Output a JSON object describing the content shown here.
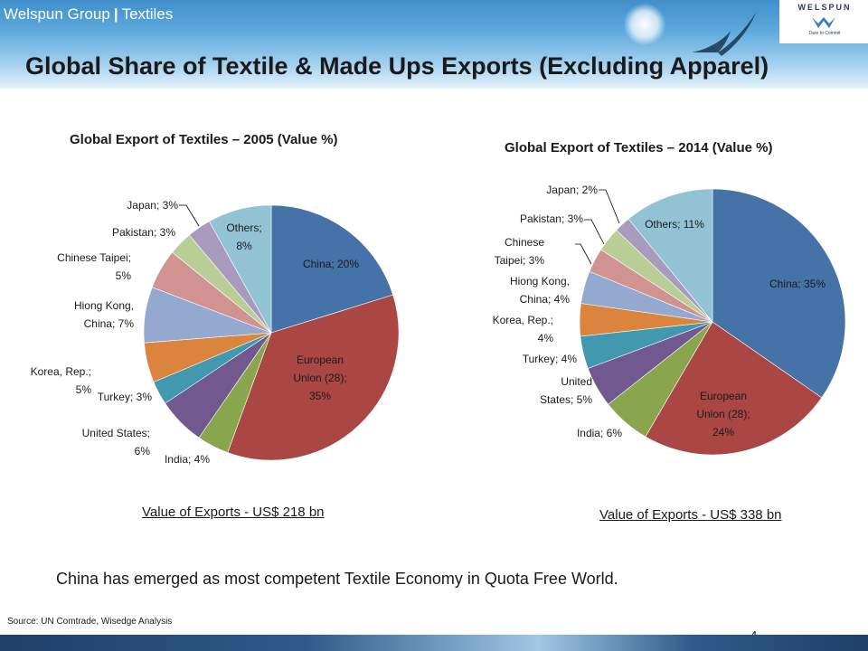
{
  "header": {
    "company": "Welspun Group",
    "separator": "|",
    "section": "Textiles",
    "title": "Global Share of Textile & Made Ups Exports (Excluding Apparel)",
    "logo_word": "WELSPUN",
    "logo_tagline": "Dare to Commit"
  },
  "chart_data": [
    {
      "type": "pie",
      "title": "Global Export of Textiles – 2005 (Value %)",
      "total_label": "Value of Exports - US$ 218 bn",
      "slices": [
        {
          "label": "China",
          "value": 20,
          "color": "#4572a7"
        },
        {
          "label": "European Union (28)",
          "value": 35,
          "color": "#aa4643"
        },
        {
          "label": "India",
          "value": 4,
          "color": "#89a54e"
        },
        {
          "label": "United States",
          "value": 6,
          "color": "#71588f"
        },
        {
          "label": "Turkey",
          "value": 3,
          "color": "#4198af"
        },
        {
          "label": "Korea, Rep.",
          "value": 5,
          "color": "#db843d"
        },
        {
          "label": "Hiong Kong, China",
          "value": 7,
          "color": "#93a9cf"
        },
        {
          "label": "Chinese Taipei",
          "value": 5,
          "color": "#d19392"
        },
        {
          "label": "Pakistan",
          "value": 3,
          "color": "#b9cd96"
        },
        {
          "label": "Japan",
          "value": 3,
          "color": "#a99bbd"
        },
        {
          "label": "Others",
          "value": 8,
          "color": "#91c3d5"
        }
      ]
    },
    {
      "type": "pie",
      "title": "Global Export of Textiles – 2014 (Value %)",
      "total_label": "Value of Exports - US$ 338 bn",
      "slices": [
        {
          "label": "China",
          "value": 35,
          "color": "#4572a7"
        },
        {
          "label": "European Union (28)",
          "value": 24,
          "color": "#aa4643"
        },
        {
          "label": "India",
          "value": 6,
          "color": "#89a54e"
        },
        {
          "label": "United States",
          "value": 5,
          "color": "#71588f"
        },
        {
          "label": "Turkey",
          "value": 4,
          "color": "#4198af"
        },
        {
          "label": "Korea, Rep.",
          "value": 4,
          "color": "#db843d"
        },
        {
          "label": "Hiong Kong, China",
          "value": 4,
          "color": "#93a9cf"
        },
        {
          "label": "Chinese Taipei",
          "value": 3,
          "color": "#d19392"
        },
        {
          "label": "Pakistan",
          "value": 3,
          "color": "#b9cd96"
        },
        {
          "label": "Japan",
          "value": 2,
          "color": "#a99bbd"
        },
        {
          "label": "Others",
          "value": 11,
          "color": "#91c3d5"
        }
      ]
    }
  ],
  "conclusion": "China has emerged as most competent Textile Economy in Quota Free World.",
  "source": "Source: UN Comtrade, Wisedge Analysis",
  "page_number": "4"
}
